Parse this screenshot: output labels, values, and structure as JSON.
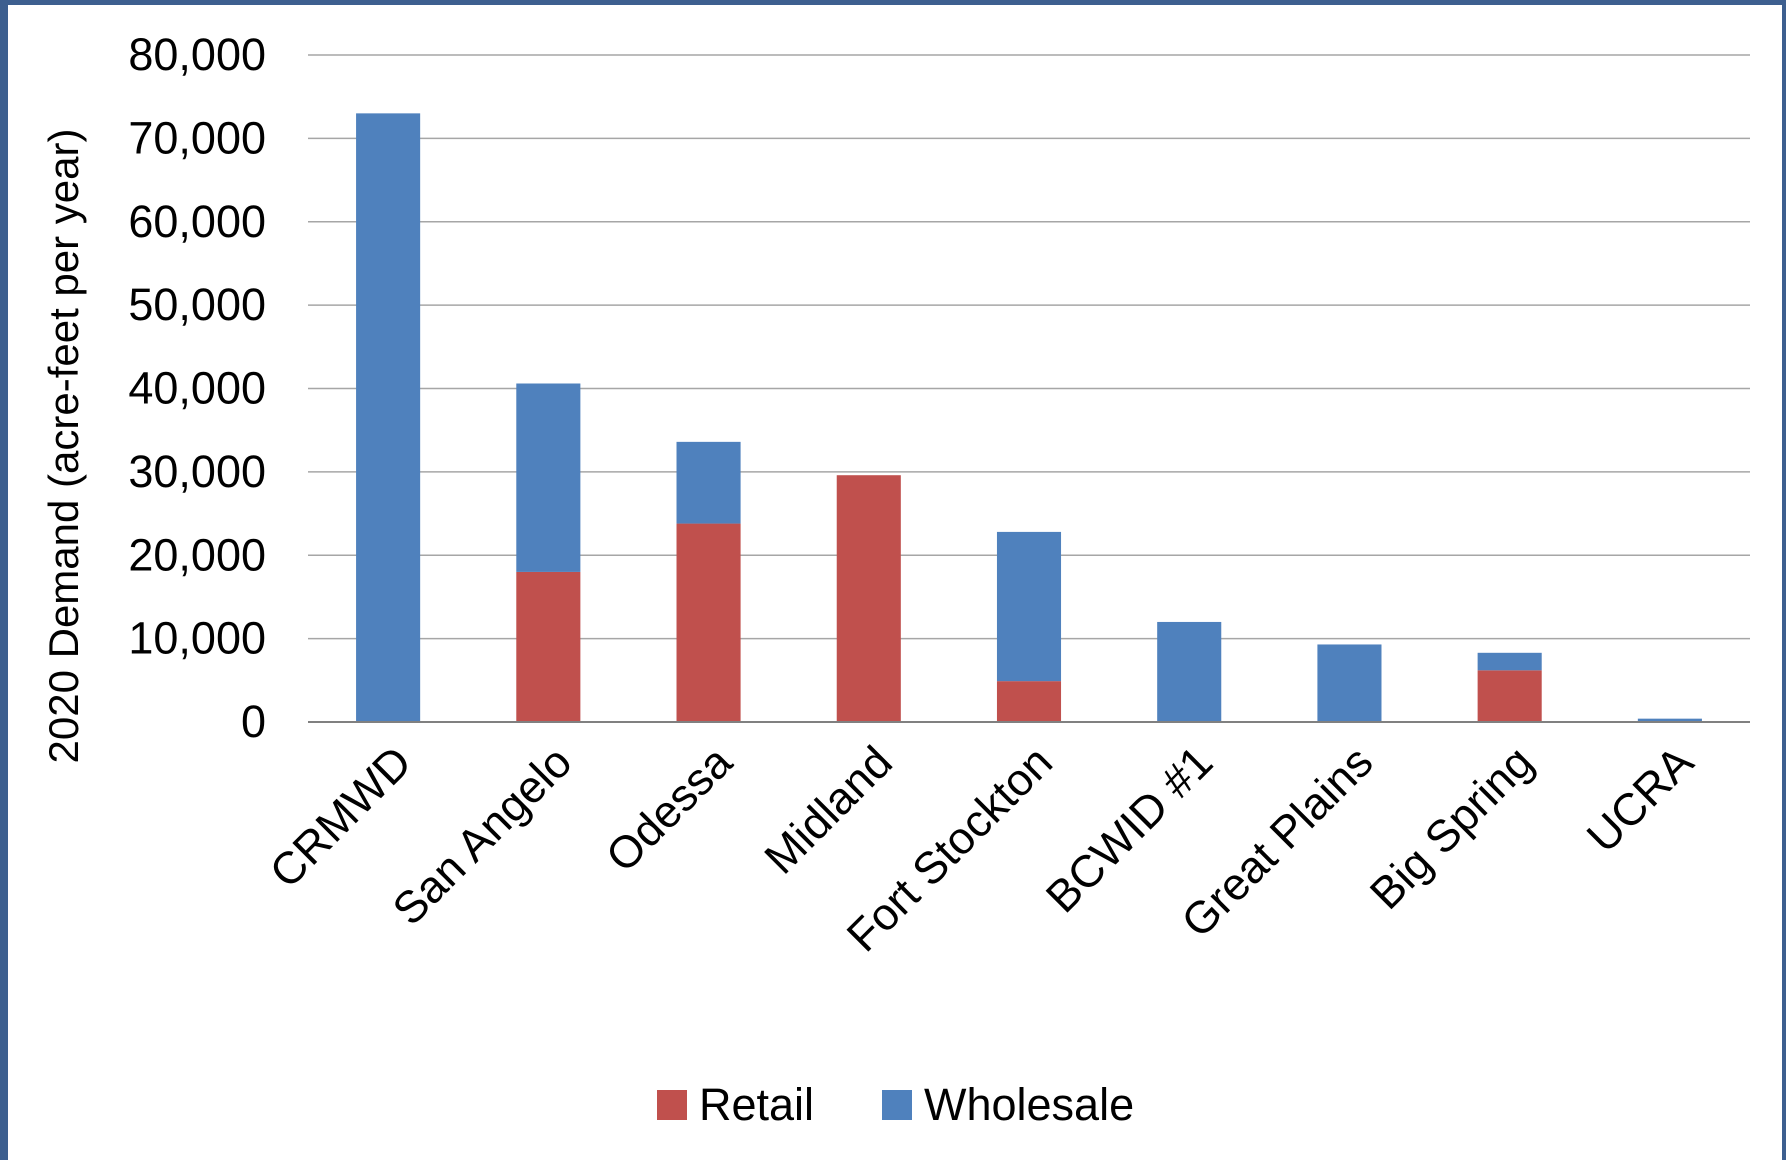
{
  "colors": {
    "retail": "#c0504d",
    "wholesale": "#4f81bd",
    "grid": "#a6a6a6",
    "axis": "#808080",
    "frame": "#3d5f8f"
  },
  "chart_data": {
    "type": "bar",
    "stacked": true,
    "title": "",
    "xlabel": "",
    "ylabel": "2020 Demand (acre-feet per year)",
    "ylim": [
      0,
      80000
    ],
    "yticks": [
      0,
      10000,
      20000,
      30000,
      40000,
      50000,
      60000,
      70000,
      80000
    ],
    "ytick_labels": [
      "0",
      "10,000",
      "20,000",
      "30,000",
      "40,000",
      "50,000",
      "60,000",
      "70,000",
      "80,000"
    ],
    "grid": true,
    "legend_position": "bottom",
    "categories": [
      "CRMWD",
      "San Angelo",
      "Odessa",
      "Midland",
      "Fort Stockton",
      "BCWID #1",
      "Great Plains",
      "Big Spring",
      "UCRA"
    ],
    "series": [
      {
        "name": "Retail",
        "values": [
          0,
          18000,
          23800,
          29600,
          4900,
          0,
          0,
          6200,
          0
        ]
      },
      {
        "name": "Wholesale",
        "values": [
          73000,
          22600,
          9800,
          0,
          17900,
          12000,
          9300,
          2100,
          400
        ]
      }
    ]
  }
}
